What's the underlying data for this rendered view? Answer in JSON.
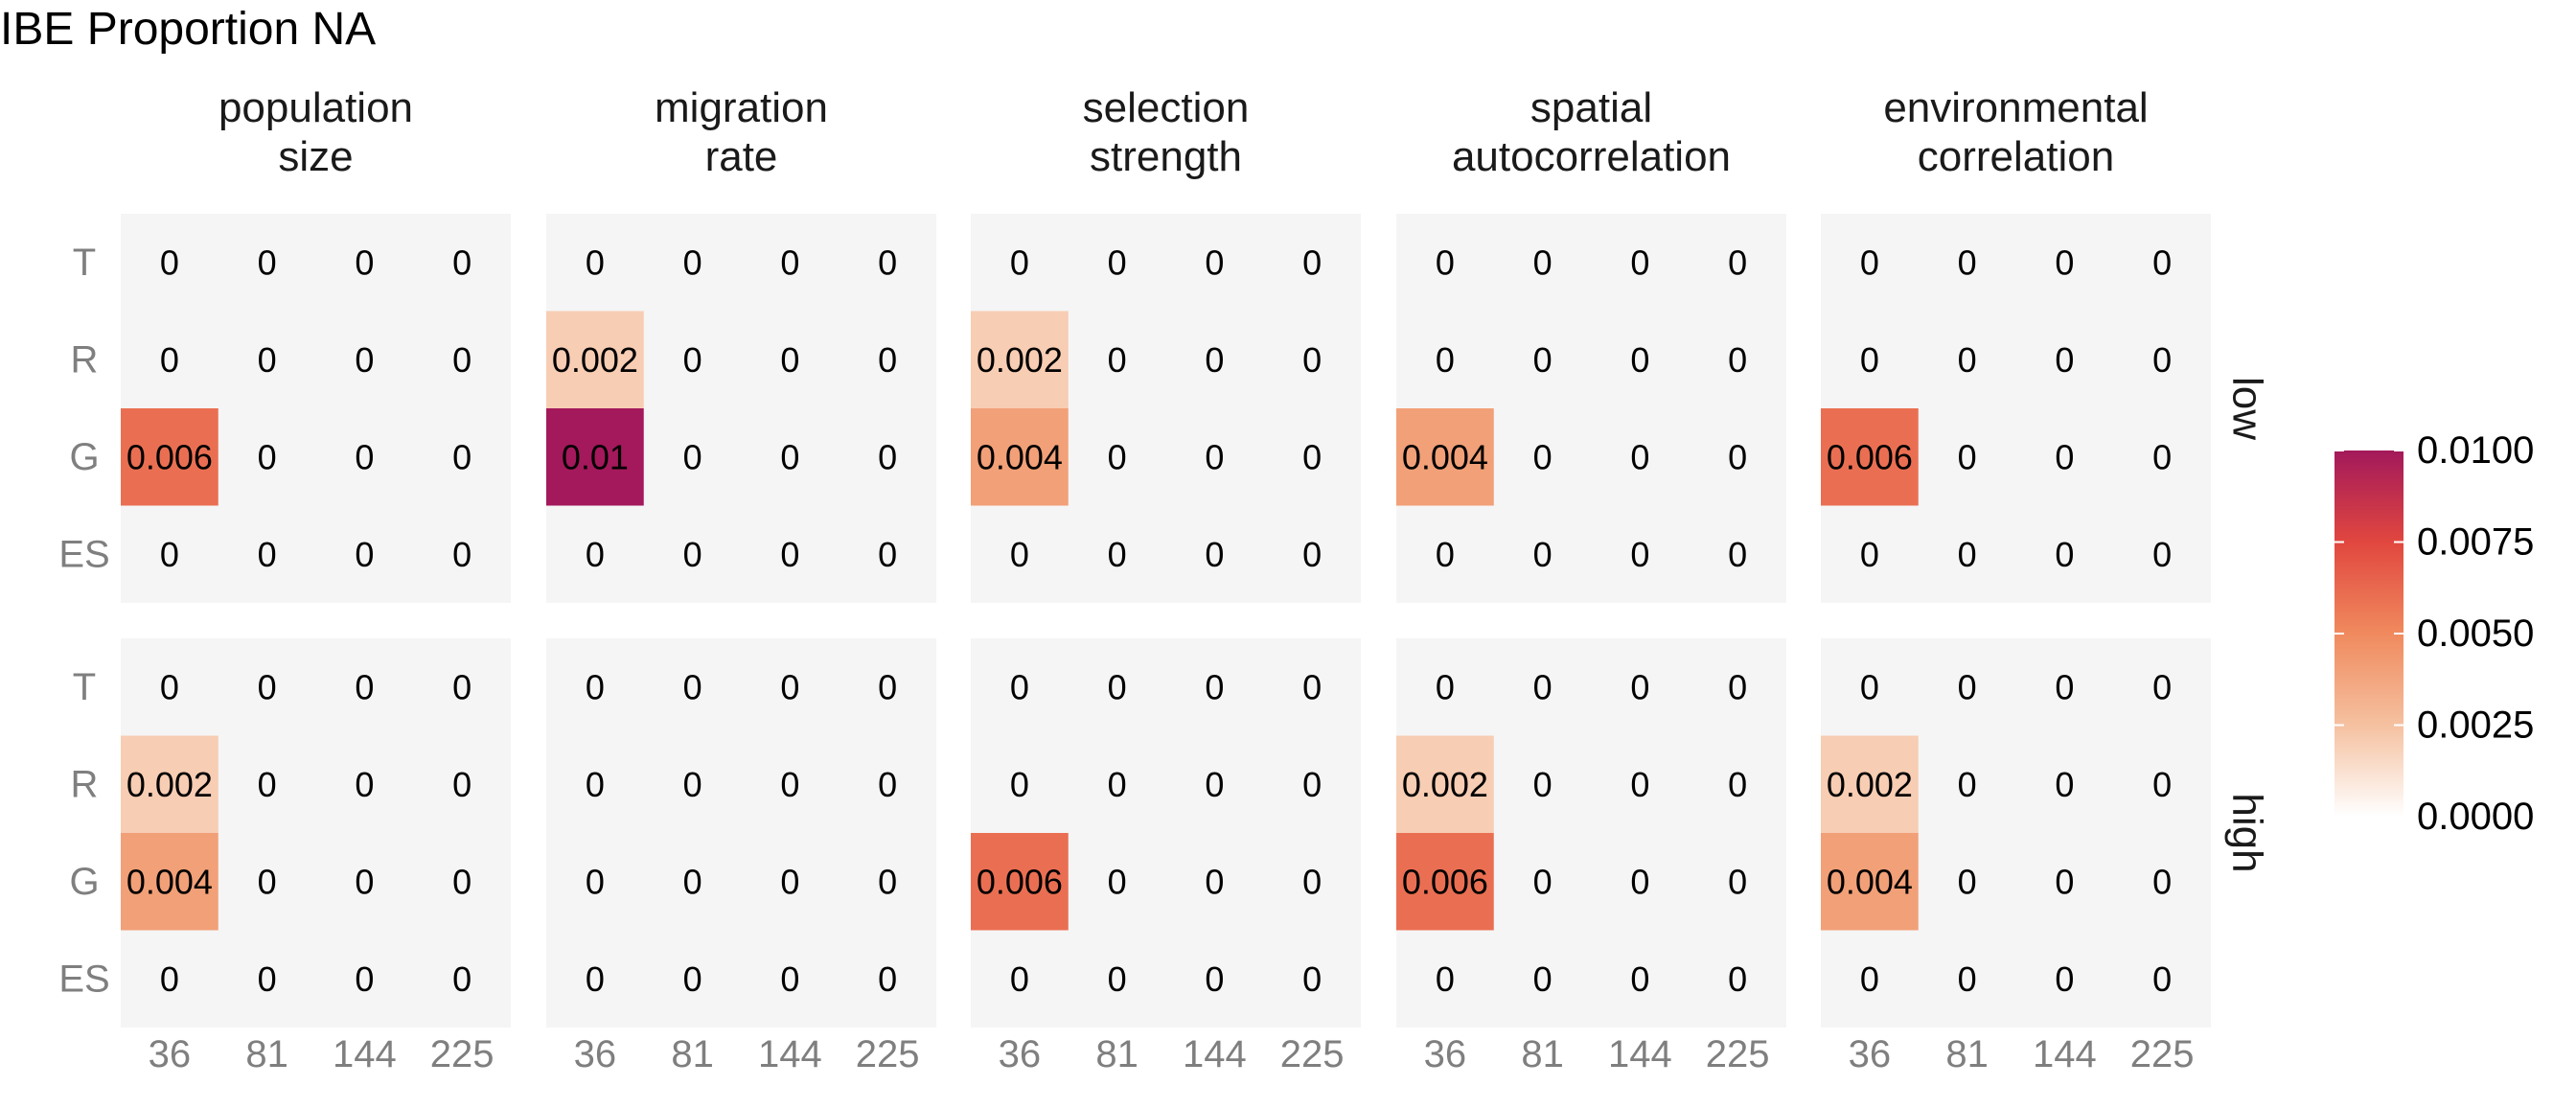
{
  "chart_data": {
    "type": "heatmap",
    "title": "IBE Proportion NA",
    "facet_columns": [
      "population\nsize",
      "migration\nrate",
      "selection\nstrength",
      "spatial\nautocorrelation",
      "environmental\ncorrelation"
    ],
    "facet_rows": [
      "low",
      "high"
    ],
    "x_categories": [
      "36",
      "81",
      "144",
      "225"
    ],
    "y_categories": [
      "T",
      "R",
      "G",
      "ES"
    ],
    "legend": {
      "ticks": [
        "0.0100",
        "0.0075",
        "0.0050",
        "0.0025",
        "0.0000"
      ],
      "range": [
        0,
        0.01
      ],
      "placement": "right",
      "colors": [
        "#ffffff",
        "#f5c1a0",
        "#f08a5e",
        "#e1473f",
        "#a3195b"
      ]
    },
    "panels": [
      {
        "column": "population\nsize",
        "row": "low",
        "labels": [
          [
            "0",
            "0",
            "0",
            "0"
          ],
          [
            "0",
            "0",
            "0",
            "0"
          ],
          [
            "0.006",
            "0",
            "0",
            "0"
          ],
          [
            "0",
            "0",
            "0",
            "0"
          ]
        ],
        "values": [
          [
            0,
            0,
            0,
            0
          ],
          [
            0,
            0,
            0,
            0
          ],
          [
            0.006,
            0,
            0,
            0
          ],
          [
            0,
            0,
            0,
            0
          ]
        ]
      },
      {
        "column": "migration\nrate",
        "row": "low",
        "labels": [
          [
            "0",
            "0",
            "0",
            "0"
          ],
          [
            "0.002",
            "0",
            "0",
            "0"
          ],
          [
            "0.01",
            "0",
            "0",
            "0"
          ],
          [
            "0",
            "0",
            "0",
            "0"
          ]
        ],
        "values": [
          [
            0,
            0,
            0,
            0
          ],
          [
            0.002,
            0,
            0,
            0
          ],
          [
            0.01,
            0,
            0,
            0
          ],
          [
            0,
            0,
            0,
            0
          ]
        ]
      },
      {
        "column": "selection\nstrength",
        "row": "low",
        "labels": [
          [
            "0",
            "0",
            "0",
            "0"
          ],
          [
            "0.002",
            "0",
            "0",
            "0"
          ],
          [
            "0.004",
            "0",
            "0",
            "0"
          ],
          [
            "0",
            "0",
            "0",
            "0"
          ]
        ],
        "values": [
          [
            0,
            0,
            0,
            0
          ],
          [
            0.002,
            0,
            0,
            0
          ],
          [
            0.004,
            0,
            0,
            0
          ],
          [
            0,
            0,
            0,
            0
          ]
        ]
      },
      {
        "column": "spatial\nautocorrelation",
        "row": "low",
        "labels": [
          [
            "0",
            "0",
            "0",
            "0"
          ],
          [
            "0",
            "0",
            "0",
            "0"
          ],
          [
            "0.004",
            "0",
            "0",
            "0"
          ],
          [
            "0",
            "0",
            "0",
            "0"
          ]
        ],
        "values": [
          [
            0,
            0,
            0,
            0
          ],
          [
            0,
            0,
            0,
            0
          ],
          [
            0.004,
            0,
            0,
            0
          ],
          [
            0,
            0,
            0,
            0
          ]
        ]
      },
      {
        "column": "environmental\ncorrelation",
        "row": "low",
        "labels": [
          [
            "0",
            "0",
            "0",
            "0"
          ],
          [
            "0",
            "0",
            "0",
            "0"
          ],
          [
            "0.006",
            "0",
            "0",
            "0"
          ],
          [
            "0",
            "0",
            "0",
            "0"
          ]
        ],
        "values": [
          [
            0,
            0,
            0,
            0
          ],
          [
            0,
            0,
            0,
            0
          ],
          [
            0.006,
            0,
            0,
            0
          ],
          [
            0,
            0,
            0,
            0
          ]
        ]
      },
      {
        "column": "population\nsize",
        "row": "high",
        "labels": [
          [
            "0",
            "0",
            "0",
            "0"
          ],
          [
            "0.002",
            "0",
            "0",
            "0"
          ],
          [
            "0.004",
            "0",
            "0",
            "0"
          ],
          [
            "0",
            "0",
            "0",
            "0"
          ]
        ],
        "values": [
          [
            0,
            0,
            0,
            0
          ],
          [
            0.002,
            0,
            0,
            0
          ],
          [
            0.004,
            0,
            0,
            0
          ],
          [
            0,
            0,
            0,
            0
          ]
        ]
      },
      {
        "column": "migration\nrate",
        "row": "high",
        "labels": [
          [
            "0",
            "0",
            "0",
            "0"
          ],
          [
            "0",
            "0",
            "0",
            "0"
          ],
          [
            "0",
            "0",
            "0",
            "0"
          ],
          [
            "0",
            "0",
            "0",
            "0"
          ]
        ],
        "values": [
          [
            0,
            0,
            0,
            0
          ],
          [
            0,
            0,
            0,
            0
          ],
          [
            0,
            0,
            0,
            0
          ],
          [
            0,
            0,
            0,
            0
          ]
        ]
      },
      {
        "column": "selection\nstrength",
        "row": "high",
        "labels": [
          [
            "0",
            "0",
            "0",
            "0"
          ],
          [
            "0",
            "0",
            "0",
            "0"
          ],
          [
            "0.006",
            "0",
            "0",
            "0"
          ],
          [
            "0",
            "0",
            "0",
            "0"
          ]
        ],
        "values": [
          [
            0,
            0,
            0,
            0
          ],
          [
            0,
            0,
            0,
            0
          ],
          [
            0.006,
            0,
            0,
            0
          ],
          [
            0,
            0,
            0,
            0
          ]
        ]
      },
      {
        "column": "spatial\nautocorrelation",
        "row": "high",
        "labels": [
          [
            "0",
            "0",
            "0",
            "0"
          ],
          [
            "0.002",
            "0",
            "0",
            "0"
          ],
          [
            "0.006",
            "0",
            "0",
            "0"
          ],
          [
            "0",
            "0",
            "0",
            "0"
          ]
        ],
        "values": [
          [
            0,
            0,
            0,
            0
          ],
          [
            0.002,
            0,
            0,
            0
          ],
          [
            0.006,
            0,
            0,
            0
          ],
          [
            0,
            0,
            0,
            0
          ]
        ]
      },
      {
        "column": "environmental\ncorrelation",
        "row": "high",
        "labels": [
          [
            "0",
            "0",
            "0",
            "0"
          ],
          [
            "0.002",
            "0",
            "0",
            "0"
          ],
          [
            "0.004",
            "0",
            "0",
            "0"
          ],
          [
            "0",
            "0",
            "0",
            "0"
          ]
        ],
        "values": [
          [
            0,
            0,
            0,
            0
          ],
          [
            0.002,
            0,
            0,
            0
          ],
          [
            0.004,
            0,
            0,
            0
          ],
          [
            0,
            0,
            0,
            0
          ]
        ]
      }
    ]
  }
}
